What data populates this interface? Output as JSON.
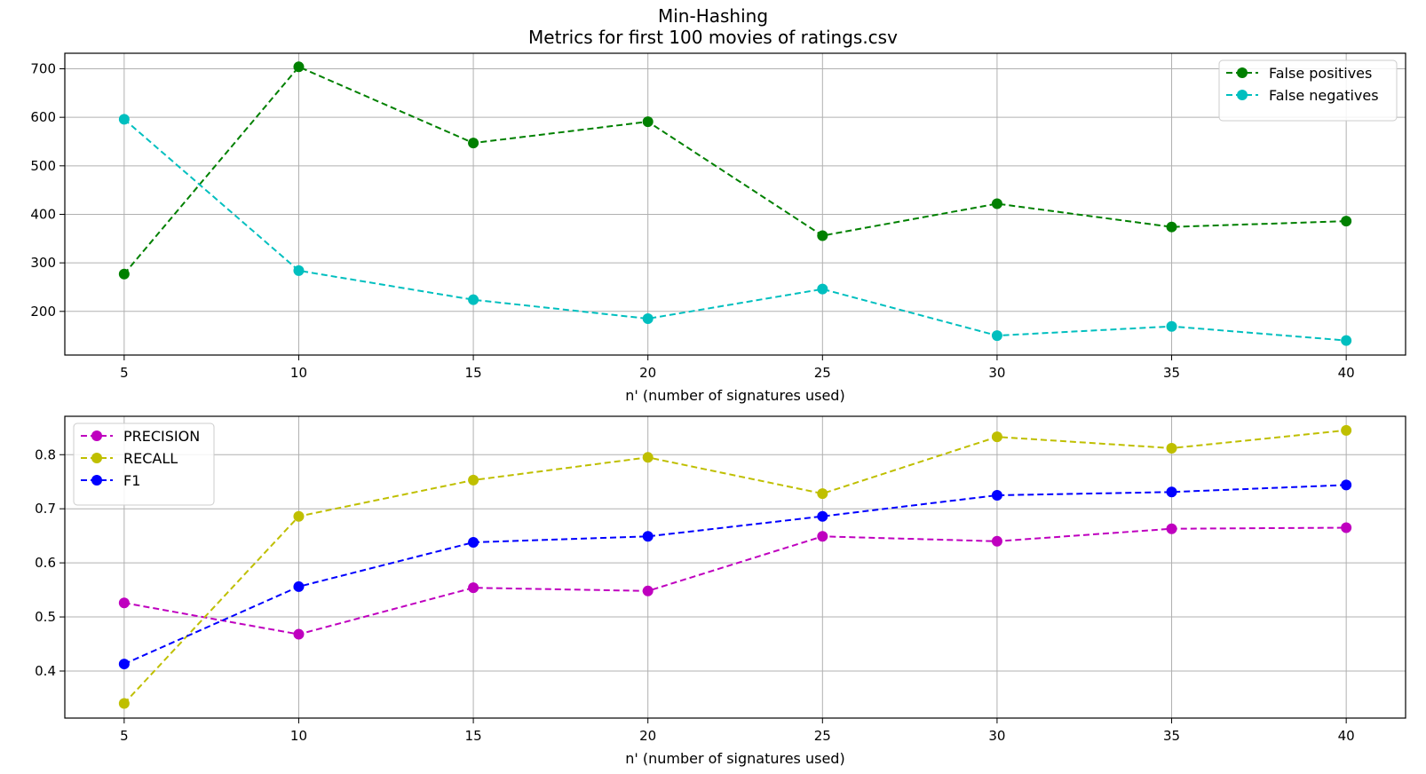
{
  "title": "Min-Hashing",
  "subtitle": "Metrics for first 100 movies of ratings.csv",
  "chart_data": [
    {
      "type": "line",
      "x": [
        5,
        10,
        15,
        20,
        25,
        30,
        35,
        40
      ],
      "xticks": [
        5,
        10,
        15,
        20,
        25,
        30,
        35,
        40
      ],
      "xlim": [
        3.3,
        41.7
      ],
      "yticks": [
        200,
        300,
        400,
        500,
        600,
        700
      ],
      "ylim": [
        110,
        732
      ],
      "xlabel": "n' (number of signatures used)",
      "ylabel": "",
      "grid": true,
      "legend_position": "upper-right",
      "series": [
        {
          "name": "False positives",
          "color": "#008000",
          "values": [
            277,
            704,
            547,
            591,
            356,
            422,
            374,
            386
          ]
        },
        {
          "name": "False negatives",
          "color": "#00bfbf",
          "values": [
            596,
            284,
            224,
            185,
            246,
            150,
            169,
            140
          ]
        }
      ]
    },
    {
      "type": "line",
      "x": [
        5,
        10,
        15,
        20,
        25,
        30,
        35,
        40
      ],
      "xticks": [
        5,
        10,
        15,
        20,
        25,
        30,
        35,
        40
      ],
      "xlim": [
        3.3,
        41.7
      ],
      "yticks": [
        0.4,
        0.5,
        0.6,
        0.7,
        0.8
      ],
      "ylim": [
        0.313,
        0.871
      ],
      "xlabel": "n' (number of signatures used)",
      "ylabel": "",
      "grid": true,
      "legend_position": "upper-left",
      "series": [
        {
          "name": "PRECISION",
          "color": "#bf00bf",
          "values": [
            0.526,
            0.468,
            0.554,
            0.548,
            0.649,
            0.64,
            0.663,
            0.665
          ]
        },
        {
          "name": "RECALL",
          "color": "#bfbf00",
          "values": [
            0.34,
            0.686,
            0.753,
            0.795,
            0.728,
            0.833,
            0.812,
            0.845
          ]
        },
        {
          "name": "F1",
          "color": "#0000ff",
          "values": [
            0.413,
            0.556,
            0.638,
            0.649,
            0.686,
            0.725,
            0.731,
            0.744
          ]
        }
      ]
    }
  ]
}
